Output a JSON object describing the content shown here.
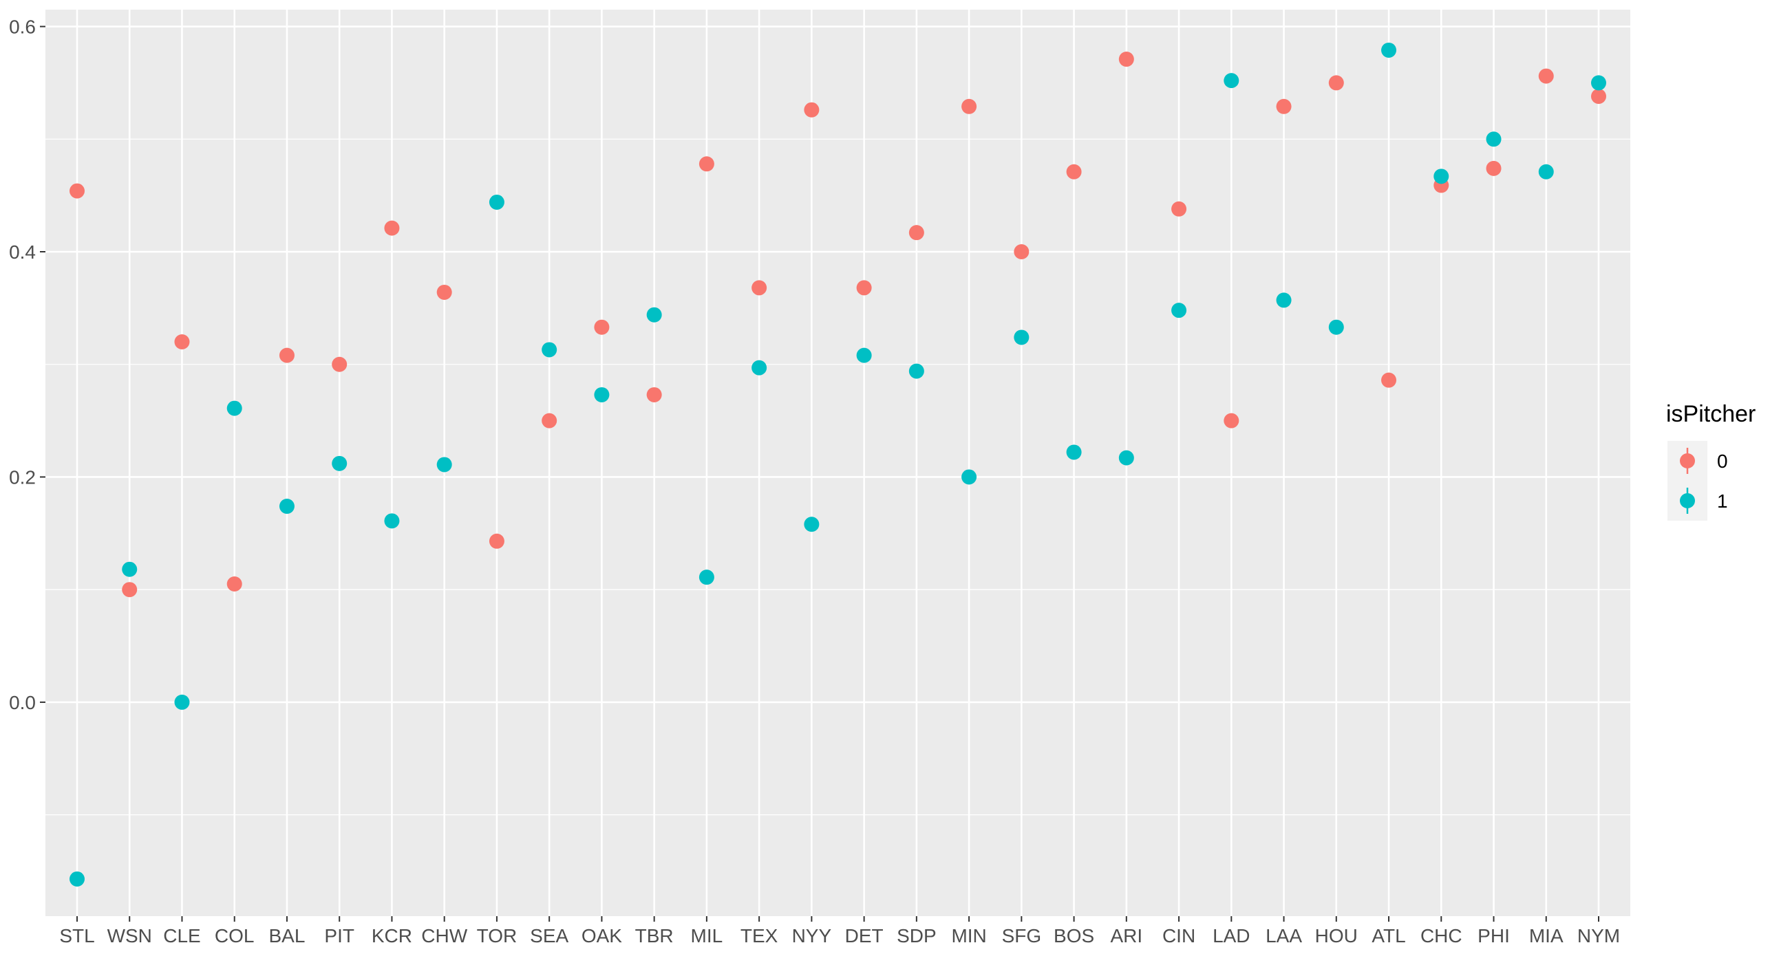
{
  "chart_data": {
    "type": "scatter",
    "title": "",
    "xlabel": "",
    "ylabel": "",
    "categories": [
      "STL",
      "WSN",
      "CLE",
      "COL",
      "BAL",
      "PIT",
      "KCR",
      "CHW",
      "TOR",
      "SEA",
      "OAK",
      "TBR",
      "MIL",
      "TEX",
      "NYY",
      "DET",
      "SDP",
      "MIN",
      "SFG",
      "BOS",
      "ARI",
      "CIN",
      "LAD",
      "LAA",
      "HOU",
      "ATL",
      "CHC",
      "PHI",
      "MIA",
      "NYM"
    ],
    "ylim": [
      -0.19,
      0.615
    ],
    "yticks": [
      0.0,
      0.2,
      0.4,
      0.6
    ],
    "ytick_labels": [
      "0.0",
      "0.2",
      "0.4",
      "0.6"
    ],
    "grid": true,
    "legend": {
      "title": "isPitcher",
      "position": "right"
    },
    "series": [
      {
        "name": "0",
        "color": "#F8766D",
        "values": [
          0.454,
          0.1,
          0.32,
          0.105,
          0.308,
          0.3,
          0.421,
          0.364,
          0.143,
          0.25,
          0.333,
          0.273,
          0.478,
          0.368,
          0.526,
          0.368,
          0.417,
          0.529,
          0.4,
          0.471,
          0.571,
          0.438,
          0.25,
          0.529,
          0.55,
          0.286,
          0.459,
          0.474,
          0.556,
          0.538
        ]
      },
      {
        "name": "1",
        "color": "#00BFC4",
        "values": [
          -0.157,
          0.118,
          0.0,
          0.261,
          0.174,
          0.212,
          0.161,
          0.211,
          0.444,
          0.313,
          0.273,
          0.344,
          0.111,
          0.297,
          0.158,
          0.308,
          0.294,
          0.2,
          0.324,
          0.222,
          0.217,
          0.348,
          0.552,
          0.357,
          0.333,
          0.579,
          0.467,
          0.5,
          0.471,
          0.55
        ]
      }
    ]
  }
}
